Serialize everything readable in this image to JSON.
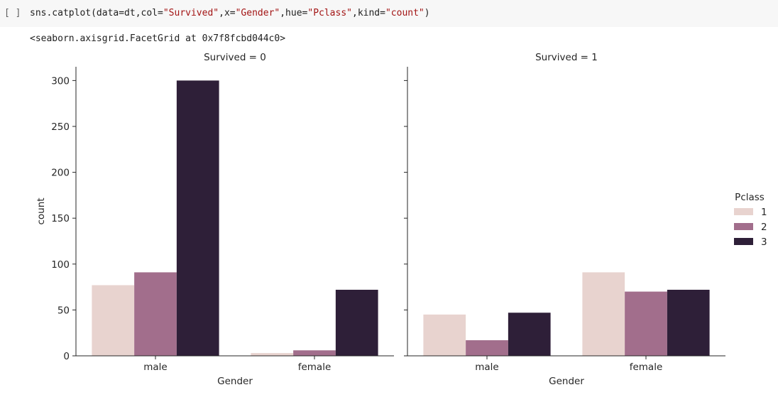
{
  "cell": {
    "run_marker": "[ ]",
    "code": {
      "p1": "sns.catplot(data=dt,col=",
      "s1": "\"Survived\"",
      "p2": ",x=",
      "s2": "\"Gender\"",
      "p3": ",hue=",
      "s3": "\"Pclass\"",
      "p4": ",kind=",
      "s4": "\"count\"",
      "p5": ")"
    },
    "output": "<seaborn.axisgrid.FacetGrid at 0x7f8fcbd044c0>"
  },
  "chart_data": {
    "type": "bar",
    "categories": [
      "male",
      "female"
    ],
    "xlabel": "Gender",
    "ylabel": "count",
    "ylim": [
      0,
      315
    ],
    "yticks": [
      0,
      50,
      100,
      150,
      200,
      250,
      300
    ],
    "grid": false,
    "legend": {
      "title": "Pclass",
      "placement": "right",
      "entries": [
        "1",
        "2",
        "3"
      ]
    },
    "colors": [
      "#e8d3cf",
      "#a26e8c",
      "#2e1f38"
    ],
    "facets": [
      {
        "title": "Survived = 0",
        "series": [
          {
            "name": "1",
            "values": [
              77,
              3
            ]
          },
          {
            "name": "2",
            "values": [
              91,
              6
            ]
          },
          {
            "name": "3",
            "values": [
              300,
              72
            ]
          }
        ]
      },
      {
        "title": "Survived = 1",
        "series": [
          {
            "name": "1",
            "values": [
              45,
              91
            ]
          },
          {
            "name": "2",
            "values": [
              17,
              70
            ]
          },
          {
            "name": "3",
            "values": [
              47,
              72
            ]
          }
        ]
      }
    ]
  }
}
